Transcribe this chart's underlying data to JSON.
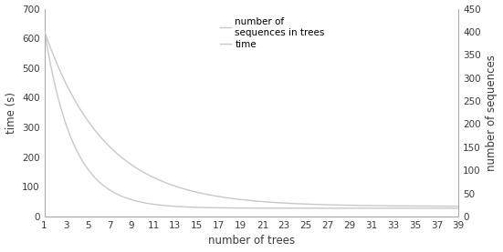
{
  "left_ylabel": "time (s)",
  "right_ylabel": "number of sequences",
  "xlabel": "number of trees",
  "left_ylim": [
    0,
    700
  ],
  "right_ylim": [
    0,
    450
  ],
  "left_yticks": [
    0,
    100,
    200,
    300,
    400,
    500,
    600,
    700
  ],
  "right_yticks": [
    0,
    50,
    100,
    150,
    200,
    250,
    300,
    350,
    400,
    450
  ],
  "x_ticks": [
    1,
    3,
    5,
    7,
    9,
    11,
    13,
    15,
    17,
    19,
    21,
    23,
    25,
    27,
    29,
    31,
    33,
    35,
    37,
    39
  ],
  "legend_labels": [
    "number of\nsequences in trees",
    "time"
  ],
  "line_color_seq": "#c8c8c8",
  "line_color_time": "#c8c8c8",
  "bg_color": "#ffffff",
  "text_color": "#3a3a3a",
  "font_size": 8.5,
  "legend_fontsize": 7.5,
  "time_a": 600,
  "time_b": 0.38,
  "time_c": 28,
  "seq_a": 380,
  "seq_b": 0.18,
  "seq_c": 22
}
